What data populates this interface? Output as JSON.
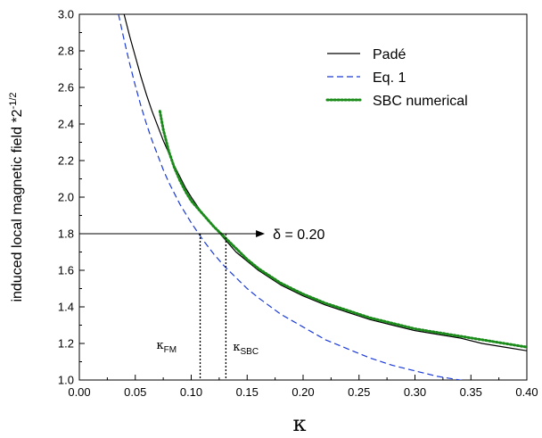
{
  "chart_data": {
    "type": "line",
    "title": "",
    "xlabel": "κ",
    "ylabel": "induced local magnetic field *2",
    "ylabel_superscript": "-1/2",
    "xlim": [
      0.0,
      0.4
    ],
    "ylim": [
      1.0,
      3.0
    ],
    "x_ticks": [
      "0.00",
      "0.05",
      "0.10",
      "0.15",
      "0.20",
      "0.25",
      "0.30",
      "0.35",
      "0.40"
    ],
    "y_ticks": [
      "1.0",
      "1.2",
      "1.4",
      "1.6",
      "1.8",
      "2.0",
      "2.2",
      "2.4",
      "2.6",
      "2.8",
      "3.0"
    ],
    "grid": false,
    "legend_position": "top-right",
    "series": [
      {
        "name": "Padé",
        "style": "solid",
        "color": "#000000",
        "x": [
          0.04,
          0.045,
          0.05,
          0.055,
          0.06,
          0.065,
          0.07,
          0.075,
          0.08,
          0.085,
          0.09,
          0.095,
          0.1,
          0.11,
          0.12,
          0.13,
          0.14,
          0.15,
          0.16,
          0.18,
          0.2,
          0.22,
          0.24,
          0.26,
          0.28,
          0.3,
          0.32,
          0.34,
          0.36,
          0.38,
          0.4
        ],
        "y": [
          3.0,
          2.88,
          2.77,
          2.66,
          2.56,
          2.47,
          2.39,
          2.31,
          2.24,
          2.17,
          2.11,
          2.05,
          2.0,
          1.91,
          1.84,
          1.77,
          1.7,
          1.65,
          1.6,
          1.52,
          1.46,
          1.41,
          1.37,
          1.33,
          1.3,
          1.27,
          1.25,
          1.23,
          1.2,
          1.18,
          1.16
        ]
      },
      {
        "name": "Eq. 1",
        "style": "dashed",
        "color": "#1a3ad8",
        "x": [
          0.035,
          0.04,
          0.045,
          0.05,
          0.055,
          0.06,
          0.065,
          0.07,
          0.075,
          0.08,
          0.09,
          0.1,
          0.11,
          0.12,
          0.13,
          0.14,
          0.15,
          0.16,
          0.18,
          0.2,
          0.22,
          0.24,
          0.26,
          0.28,
          0.3,
          0.32,
          0.34,
          0.36
        ],
        "y": [
          3.0,
          2.86,
          2.73,
          2.61,
          2.5,
          2.4,
          2.31,
          2.23,
          2.15,
          2.08,
          1.96,
          1.86,
          1.77,
          1.69,
          1.62,
          1.56,
          1.5,
          1.45,
          1.36,
          1.29,
          1.22,
          1.17,
          1.12,
          1.08,
          1.05,
          1.02,
          1.0,
          0.98
        ]
      },
      {
        "name": "SBC numerical",
        "style": "dotted",
        "color": "#1a8a1a",
        "x": [
          0.072,
          0.075,
          0.08,
          0.085,
          0.09,
          0.095,
          0.1,
          0.11,
          0.12,
          0.13,
          0.14,
          0.15,
          0.16,
          0.18,
          0.2,
          0.22,
          0.24,
          0.26,
          0.28,
          0.3,
          0.32,
          0.34,
          0.36,
          0.38,
          0.4
        ],
        "y": [
          2.47,
          2.37,
          2.25,
          2.16,
          2.09,
          2.03,
          1.98,
          1.91,
          1.84,
          1.78,
          1.72,
          1.66,
          1.61,
          1.53,
          1.47,
          1.42,
          1.38,
          1.34,
          1.31,
          1.28,
          1.26,
          1.24,
          1.22,
          1.2,
          1.18
        ]
      }
    ],
    "annotations": {
      "delta_label": "δ = 0.20",
      "delta_level": 1.8,
      "kappa_fm_symbol": "κ",
      "kappa_fm_subscript": "FM",
      "kappa_fm": 0.108,
      "kappa_sbc_symbol": "κ",
      "kappa_sbc_subscript": "SBC",
      "kappa_sbc": 0.131
    }
  }
}
